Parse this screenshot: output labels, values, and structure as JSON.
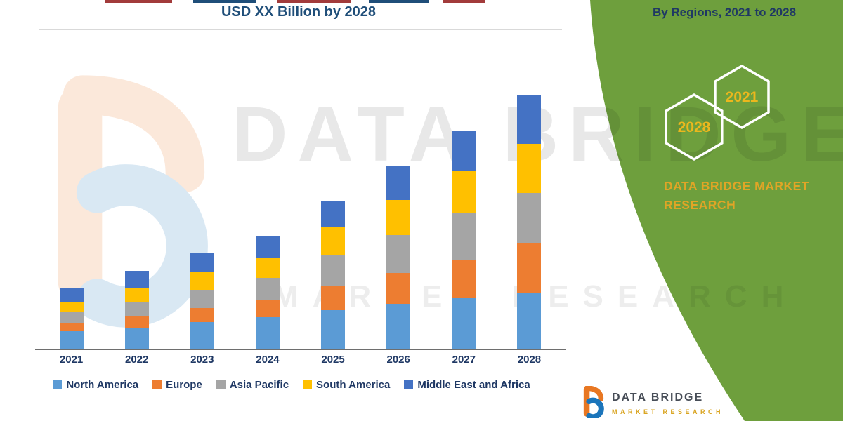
{
  "title": {
    "line2": "USD XX Billion by 2028"
  },
  "right_panel": {
    "heading": "By Regions, 2021 to 2028",
    "hexagon_back_label": "2028",
    "hexagon_front_label": "2021",
    "brand_line1": "DATA BRIDGE MARKET",
    "brand_line2": "RESEARCH"
  },
  "watermark": {
    "line1": "DATA BRIDGE",
    "line2": "MARKET RESEARCH"
  },
  "footer_logo": {
    "name": "DATA BRIDGE",
    "subtext": "MARKET RESEARCH"
  },
  "colors": {
    "green_panel": "#6e9f3d",
    "title_navy": "#1f4e79",
    "label_navy": "#1f3864",
    "hex_gold": "#ecb71d",
    "brand_gold": "#e0a526"
  },
  "chart_data": {
    "type": "bar",
    "stacked": true,
    "title": "USD XX Billion by 2028",
    "xlabel": "",
    "ylabel": "",
    "y_axis_visible": false,
    "value_units": "relative (numeric axis not labeled; values estimated from bar heights)",
    "legend_position": "bottom",
    "grid": false,
    "categories": [
      "2021",
      "2022",
      "2023",
      "2024",
      "2025",
      "2026",
      "2027",
      "2028"
    ],
    "series": [
      {
        "name": "North America",
        "color": "#5b9bd5",
        "values": [
          25,
          30,
          38,
          45,
          55,
          64,
          73,
          80
        ]
      },
      {
        "name": "Europe",
        "color": "#ed7d31",
        "values": [
          12,
          16,
          20,
          25,
          34,
          44,
          54,
          70
        ]
      },
      {
        "name": "Asia Pacific",
        "color": "#a5a5a5",
        "values": [
          15,
          20,
          26,
          31,
          44,
          54,
          66,
          72
        ]
      },
      {
        "name": "South America",
        "color": "#ffc000",
        "values": [
          14,
          20,
          25,
          28,
          40,
          50,
          60,
          70
        ]
      },
      {
        "name": "Middle East and Africa",
        "color": "#4472c4",
        "values": [
          20,
          25,
          28,
          32,
          38,
          48,
          58,
          70
        ]
      }
    ]
  }
}
